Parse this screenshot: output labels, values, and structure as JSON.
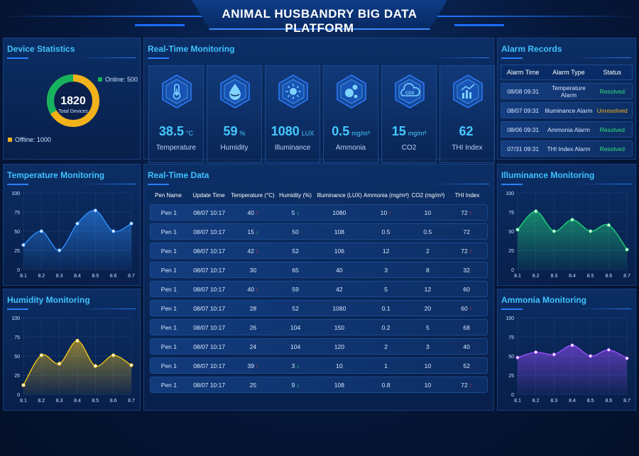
{
  "header": {
    "title": "ANIMAL HUSBANDRY BIG DATA PLATFORM"
  },
  "device_stats": {
    "title": "Device Statistics",
    "total": "1820",
    "total_label": "Total Devices",
    "online_label": "Online: 500",
    "offline_label": "Offline: 1000",
    "online_value": 500,
    "offline_value": 1000,
    "online_color": "#16b35e",
    "offline_color": "#f2b21a"
  },
  "realtime": {
    "title": "Real-Time Monitoring",
    "items": [
      {
        "icon": "thermometer-icon",
        "value": "38.5",
        "unit": "°C",
        "label": "Temperature"
      },
      {
        "icon": "humidity-drop-icon",
        "value": "59",
        "unit": "%",
        "label": "Humidity"
      },
      {
        "icon": "sun-icon",
        "value": "1080",
        "unit": "LUX",
        "label": "Illuminance"
      },
      {
        "icon": "ammonia-molecule-icon",
        "value": "0.5",
        "unit": "mg/m³",
        "label": "Ammonia"
      },
      {
        "icon": "co2-cloud-icon",
        "value": "15",
        "unit": "mg/m³",
        "label": "CO2"
      },
      {
        "icon": "chart-trend-icon",
        "value": "62",
        "unit": "",
        "label": "THI Index"
      }
    ]
  },
  "alarms": {
    "title": "Alarm Records",
    "columns": [
      "Alarm Time",
      "Alarm Type",
      "Status"
    ],
    "rows": [
      {
        "time": "08/08 09:31",
        "type": "Temperature Alarm",
        "status": "Resolved",
        "status_color": "#2fe07a"
      },
      {
        "time": "08/07 09:31",
        "type": "Illuminance Alarm",
        "status": "Unresolved",
        "status_color": "#f2b21a"
      },
      {
        "time": "08/06 09:31",
        "type": "Ammonia Alarm",
        "status": "Resolved",
        "status_color": "#2fe07a"
      },
      {
        "time": "07/31 09:31",
        "type": "THI Index Alarm",
        "status": "Resolved",
        "status_color": "#2fe07a"
      }
    ]
  },
  "data_table": {
    "title": "Real-Time Data",
    "columns": [
      "Pen Name",
      "Update Time",
      "Temperature (°C)",
      "Humidity (%)",
      "Illuminance (LUX)",
      "Ammonia (mg/m³)",
      "CO2 (mg/m³)",
      "THI Index"
    ],
    "rows": [
      {
        "pen": "Pen 1",
        "time": "08/07 10:17",
        "temp": "40",
        "temp_trend": "up",
        "hum": "5",
        "hum_trend": "down",
        "lux": "1080",
        "nh3": "10",
        "nh3_trend": "up",
        "co2": "10",
        "thi": "72",
        "thi_trend": "up"
      },
      {
        "pen": "Pen 1",
        "time": "08/07 10:17",
        "temp": "15",
        "temp_trend": "down",
        "hum": "50",
        "hum_trend": "",
        "lux": "108",
        "nh3": "0.5",
        "nh3_trend": "",
        "co2": "0.5",
        "thi": "72",
        "thi_trend": ""
      },
      {
        "pen": "Pen 1",
        "time": "08/07 10:17",
        "temp": "42",
        "temp_trend": "up",
        "hum": "52",
        "hum_trend": "",
        "lux": "106",
        "nh3": "12",
        "nh3_trend": "",
        "co2": "2",
        "thi": "72",
        "thi_trend": "up"
      },
      {
        "pen": "Pen 1",
        "time": "08/07 10:17",
        "temp": "30",
        "temp_trend": "",
        "hum": "65",
        "hum_trend": "",
        "lux": "40",
        "nh3": "3",
        "nh3_trend": "",
        "co2": "8",
        "thi": "32",
        "thi_trend": ""
      },
      {
        "pen": "Pen 1",
        "time": "08/07 10:17",
        "temp": "40",
        "temp_trend": "up",
        "hum": "59",
        "hum_trend": "",
        "lux": "42",
        "nh3": "5",
        "nh3_trend": "",
        "co2": "12",
        "thi": "60",
        "thi_trend": ""
      },
      {
        "pen": "Pen 1",
        "time": "08/07 10:17",
        "temp": "28",
        "temp_trend": "",
        "hum": "52",
        "hum_trend": "",
        "lux": "1080",
        "nh3": "0.1",
        "nh3_trend": "",
        "co2": "20",
        "thi": "60",
        "thi_trend": "up"
      },
      {
        "pen": "Pen 1",
        "time": "08/07 10:17",
        "temp": "26",
        "temp_trend": "",
        "hum": "104",
        "hum_trend": "",
        "lux": "150",
        "nh3": "0.2",
        "nh3_trend": "",
        "co2": "5",
        "thi": "68",
        "thi_trend": ""
      },
      {
        "pen": "Pen 1",
        "time": "08/07 10:17",
        "temp": "24",
        "temp_trend": "",
        "hum": "104",
        "hum_trend": "",
        "lux": "120",
        "nh3": "2",
        "nh3_trend": "",
        "co2": "3",
        "thi": "40",
        "thi_trend": ""
      },
      {
        "pen": "Pen 1",
        "time": "08/07 10:17",
        "temp": "39",
        "temp_trend": "up",
        "hum": "3",
        "hum_trend": "down",
        "lux": "10",
        "nh3": "1",
        "nh3_trend": "",
        "co2": "10",
        "thi": "52",
        "thi_trend": ""
      },
      {
        "pen": "Pen 1",
        "time": "08/07 10:17",
        "temp": "25",
        "temp_trend": "",
        "hum": "9",
        "hum_trend": "down",
        "lux": "108",
        "nh3": "0.8",
        "nh3_trend": "",
        "co2": "10",
        "thi": "72",
        "thi_trend": "up"
      }
    ]
  },
  "charts": {
    "temperature": {
      "title": "Temperature Monitoring"
    },
    "humidity": {
      "title": "Humidity Monitoring"
    },
    "illuminance": {
      "title": "Illuminance Monitoring"
    },
    "ammonia": {
      "title": "Ammonia Monitoring"
    }
  },
  "chart_data": [
    {
      "id": "temperature",
      "type": "area",
      "title": "Temperature Monitoring",
      "x": [
        "8.1",
        "8.2",
        "8.3",
        "8.4",
        "8.5",
        "8.6",
        "8.7"
      ],
      "values": [
        32,
        50,
        25,
        60,
        77,
        50,
        60
      ],
      "ylim": [
        0,
        100
      ],
      "yticks": [
        0,
        25,
        50,
        75,
        100
      ],
      "color": "#2f8fff",
      "grid": true
    },
    {
      "id": "humidity",
      "type": "area",
      "title": "Humidity Monitoring",
      "x": [
        "8.1",
        "8.2",
        "8.3",
        "8.4",
        "8.5",
        "8.6",
        "8.7"
      ],
      "values": [
        12,
        51,
        40,
        70,
        37,
        51,
        38
      ],
      "ylim": [
        0,
        100
      ],
      "yticks": [
        0,
        25,
        50,
        75,
        100
      ],
      "color": "#f2c21a",
      "grid": true
    },
    {
      "id": "illuminance",
      "type": "area",
      "title": "Illuminance Monitoring",
      "x": [
        "8.1",
        "8.2",
        "8.3",
        "8.4",
        "8.5",
        "8.6",
        "8.7"
      ],
      "values": [
        52,
        76,
        50,
        65,
        50,
        58,
        26
      ],
      "ylim": [
        0,
        100
      ],
      "yticks": [
        0,
        25,
        50,
        75,
        100
      ],
      "color": "#21d47a",
      "grid": true
    },
    {
      "id": "ammonia",
      "type": "area",
      "title": "Ammonia Monitoring",
      "x": [
        "8.1",
        "8.2",
        "8.3",
        "8.4",
        "8.5",
        "8.6",
        "8.7"
      ],
      "values": [
        48,
        55,
        52,
        64,
        50,
        58,
        47
      ],
      "ylim": [
        0,
        100
      ],
      "yticks": [
        0,
        25,
        50,
        75,
        100
      ],
      "color": "#9b4dff",
      "grid": true
    }
  ]
}
